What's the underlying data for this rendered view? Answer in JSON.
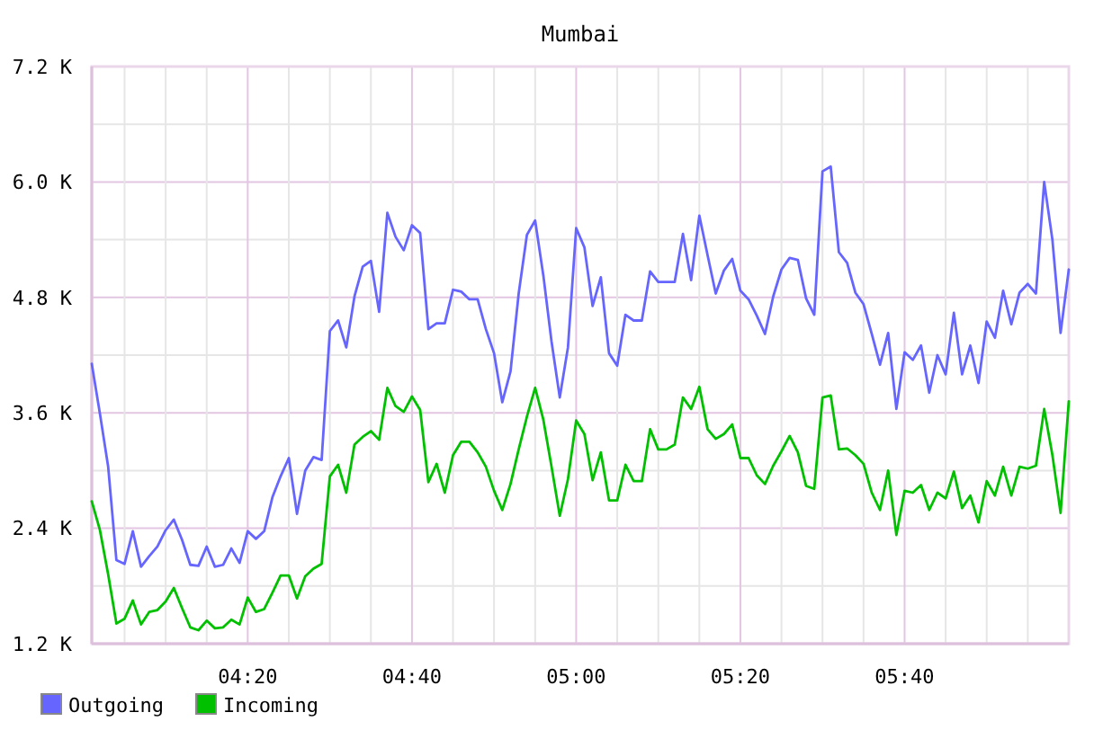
{
  "chart_data": {
    "type": "line",
    "title": "Mumbai",
    "x": [
      4.0167,
      4.0333,
      4.05,
      4.0667,
      4.0833,
      4.1,
      4.1167,
      4.1333,
      4.15,
      4.1667,
      4.1833,
      4.2,
      4.2167,
      4.2333,
      4.25,
      4.2667,
      4.2833,
      4.3,
      4.3167,
      4.3333,
      4.35,
      4.3667,
      4.3833,
      4.4,
      4.4167,
      4.4333,
      4.45,
      4.4667,
      4.4833,
      4.5,
      4.5167,
      4.5333,
      4.55,
      4.5667,
      4.5833,
      4.6,
      4.6167,
      4.6333,
      4.65,
      4.6667,
      4.6833,
      4.7,
      4.7167,
      4.7333,
      4.75,
      4.7667,
      4.7833,
      4.8,
      4.8167,
      4.8333,
      4.85,
      4.8667,
      4.8833,
      4.9,
      4.9167,
      4.9333,
      4.95,
      4.9667,
      4.9833,
      5.0,
      5.0167,
      5.0333,
      5.05,
      5.0667,
      5.0833,
      5.1,
      5.1167,
      5.1333,
      5.15,
      5.1667,
      5.1833,
      5.2,
      5.2167,
      5.2333,
      5.25,
      5.2667,
      5.2833,
      5.3,
      5.3167,
      5.3333,
      5.35,
      5.3667,
      5.3833,
      5.4,
      5.4167,
      5.4333,
      5.45,
      5.4667,
      5.4833,
      5.5,
      5.5167,
      5.5333,
      5.55,
      5.5667,
      5.5833,
      5.6,
      5.6167,
      5.6333,
      5.65,
      5.6667,
      5.6833,
      5.7,
      5.7167,
      5.7333,
      5.75,
      5.7667,
      5.7833,
      5.8,
      5.8167,
      5.8333,
      5.85,
      5.8667,
      5.8833,
      5.9,
      5.9167,
      5.9333,
      5.95,
      5.9667,
      5.9833,
      6.0
    ],
    "series": [
      {
        "name": "Outgoing",
        "color": "#6666ff",
        "values": [
          4110,
          3590,
          3040,
          2070,
          2030,
          2370,
          2000,
          2110,
          2210,
          2380,
          2490,
          2280,
          2020,
          2010,
          2210,
          2000,
          2020,
          2190,
          2040,
          2370,
          2290,
          2370,
          2720,
          2940,
          3130,
          2550,
          3000,
          3140,
          3110,
          4450,
          4560,
          4280,
          4810,
          5120,
          5180,
          4650,
          5680,
          5430,
          5290,
          5550,
          5470,
          4470,
          4530,
          4530,
          4880,
          4860,
          4780,
          4780,
          4470,
          4220,
          3710,
          4030,
          4840,
          5450,
          5600,
          5030,
          4340,
          3760,
          4280,
          5520,
          5320,
          4710,
          5010,
          4220,
          4090,
          4620,
          4560,
          4560,
          5070,
          4960,
          4960,
          4960,
          5460,
          4980,
          5650,
          5240,
          4840,
          5080,
          5200,
          4870,
          4780,
          4610,
          4420,
          4810,
          5090,
          5210,
          5190,
          4790,
          4620,
          6110,
          6160,
          5270,
          5160,
          4850,
          4730,
          4420,
          4100,
          4430,
          3640,
          4230,
          4150,
          4300,
          3810,
          4200,
          4000,
          4640,
          4000,
          4300,
          3910,
          4550,
          4380,
          4870,
          4520,
          4850,
          4940,
          4840,
          6000,
          5400,
          4430,
          5090
        ]
      },
      {
        "name": "Incoming",
        "color": "#00c000",
        "values": [
          2680,
          2380,
          1920,
          1410,
          1460,
          1650,
          1400,
          1530,
          1550,
          1640,
          1780,
          1570,
          1370,
          1340,
          1440,
          1360,
          1370,
          1450,
          1400,
          1680,
          1530,
          1560,
          1730,
          1910,
          1910,
          1670,
          1900,
          1980,
          2030,
          2940,
          3060,
          2770,
          3270,
          3350,
          3410,
          3320,
          3860,
          3670,
          3610,
          3770,
          3630,
          2880,
          3070,
          2770,
          3160,
          3300,
          3300,
          3190,
          3040,
          2790,
          2590,
          2860,
          3220,
          3560,
          3860,
          3530,
          3040,
          2530,
          2910,
          3520,
          3380,
          2900,
          3190,
          2690,
          2690,
          3060,
          2890,
          2890,
          3430,
          3220,
          3220,
          3270,
          3760,
          3640,
          3870,
          3430,
          3330,
          3380,
          3480,
          3130,
          3130,
          2950,
          2860,
          3050,
          3200,
          3360,
          3190,
          2840,
          2810,
          3760,
          3780,
          3220,
          3230,
          3160,
          3070,
          2770,
          2590,
          3000,
          2330,
          2790,
          2770,
          2850,
          2590,
          2770,
          2710,
          2990,
          2610,
          2740,
          2460,
          2890,
          2740,
          3040,
          2740,
          3040,
          3020,
          3050,
          3640,
          3160,
          2560,
          3720
        ]
      }
    ],
    "xlim": [
      4.0167,
      6.0
    ],
    "xticks": [
      {
        "value": 4.0833,
        "label": null
      },
      {
        "value": 4.1667,
        "label": null
      },
      {
        "value": 4.25,
        "label": null
      },
      {
        "value": 4.3333,
        "label": "04:20"
      },
      {
        "value": 4.4167,
        "label": null
      },
      {
        "value": 4.5,
        "label": null
      },
      {
        "value": 4.5833,
        "label": null
      },
      {
        "value": 4.6667,
        "label": "04:40"
      },
      {
        "value": 4.75,
        "label": null
      },
      {
        "value": 4.8333,
        "label": null
      },
      {
        "value": 4.9167,
        "label": null
      },
      {
        "value": 5.0,
        "label": "05:00"
      },
      {
        "value": 5.0833,
        "label": null
      },
      {
        "value": 5.1667,
        "label": null
      },
      {
        "value": 5.25,
        "label": null
      },
      {
        "value": 5.3333,
        "label": "05:20"
      },
      {
        "value": 5.4167,
        "label": null
      },
      {
        "value": 5.5,
        "label": null
      },
      {
        "value": 5.5833,
        "label": null
      },
      {
        "value": 5.6667,
        "label": "05:40"
      },
      {
        "value": 5.75,
        "label": null
      },
      {
        "value": 5.8333,
        "label": null
      },
      {
        "value": 5.9167,
        "label": null
      }
    ],
    "ylim": [
      1200,
      7200
    ],
    "yticks": [
      {
        "value": 1200,
        "label": "1.2 K"
      },
      {
        "value": 1800,
        "label": null
      },
      {
        "value": 2400,
        "label": "2.4 K"
      },
      {
        "value": 3000,
        "label": null
      },
      {
        "value": 3600,
        "label": "3.6 K"
      },
      {
        "value": 4200,
        "label": null
      },
      {
        "value": 4800,
        "label": "4.8 K"
      },
      {
        "value": 5400,
        "label": null
      },
      {
        "value": 6000,
        "label": "6.0 K"
      },
      {
        "value": 6600,
        "label": null
      },
      {
        "value": 7200,
        "label": "7.2 K"
      }
    ],
    "grid": true,
    "legend": "bottom left"
  }
}
